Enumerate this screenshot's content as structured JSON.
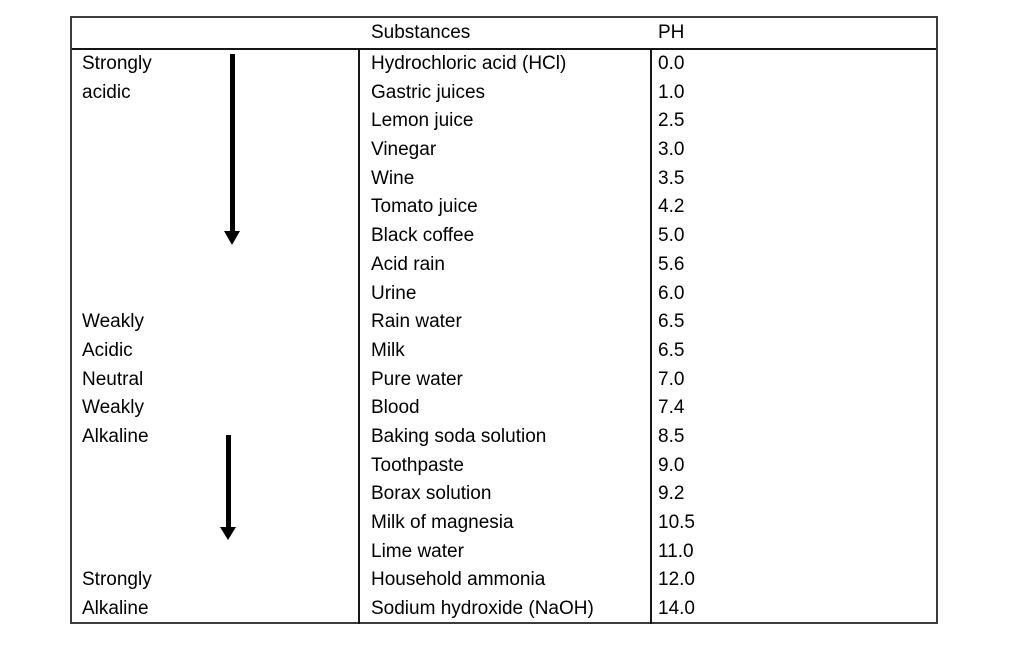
{
  "table": {
    "headers": {
      "substances": "Substances",
      "ph": "PH"
    },
    "rows": [
      {
        "category": "Strongly",
        "substance": "Hydrochloric acid (HCl)",
        "ph": "0.0"
      },
      {
        "category": "acidic",
        "substance": "Gastric juices",
        "ph": "1.0"
      },
      {
        "category": "",
        "substance": "Lemon juice",
        "ph": "2.5"
      },
      {
        "category": "",
        "substance": "Vinegar",
        "ph": "3.0"
      },
      {
        "category": "",
        "substance": "Wine",
        "ph": "3.5"
      },
      {
        "category": "",
        "substance": "Tomato juice",
        "ph": "4.2"
      },
      {
        "category": "",
        "substance": "Black coffee",
        "ph": "5.0"
      },
      {
        "category": "",
        "substance": "Acid rain",
        "ph": "5.6"
      },
      {
        "category": "",
        "substance": "Urine",
        "ph": "6.0"
      },
      {
        "category": "Weakly",
        "substance": "Rain water",
        "ph": "6.5"
      },
      {
        "category": "Acidic",
        "substance": "Milk",
        "ph": "6.5"
      },
      {
        "category": "Neutral",
        "substance": "Pure water",
        "ph": "7.0"
      },
      {
        "category": "Weakly",
        "substance": "Blood",
        "ph": "7.4"
      },
      {
        "category": "Alkaline",
        "substance": "Baking soda solution",
        "ph": "8.5"
      },
      {
        "category": "",
        "substance": "Toothpaste",
        "ph": "9.0"
      },
      {
        "category": "",
        "substance": "Borax solution",
        "ph": "9.2"
      },
      {
        "category": "",
        "substance": "Milk of magnesia",
        "ph": "10.5"
      },
      {
        "category": "",
        "substance": "Lime water",
        "ph": "11.0"
      },
      {
        "category": "Strongly",
        "substance": "Household ammonia",
        "ph": "12.0"
      },
      {
        "category": "Alkaline",
        "substance": "Sodium hydroxide (NaOH)",
        "ph": "14.0"
      }
    ],
    "icons": {
      "acidic_arrow": "down-arrow",
      "alkaline_arrow": "down-arrow"
    },
    "colors": {
      "background": "#ffffff",
      "text": "#000000",
      "outer_border": "#3c3c3c",
      "grid_line": "#161616",
      "arrow": "#000000"
    }
  }
}
